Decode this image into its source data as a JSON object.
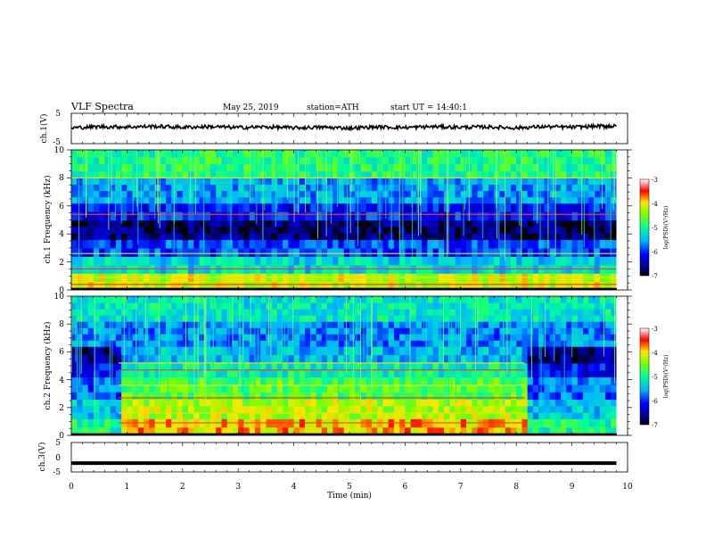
{
  "header": {
    "title": "VLF Spectra",
    "date": "May 25, 2019",
    "station": "station=ATH",
    "start": "start UT = 14:40:1"
  },
  "chart_data": [
    {
      "type": "line",
      "name": "ch1-waveform",
      "ylabel": "ch.1(V)",
      "ylim": [
        -5,
        5
      ],
      "yticks": [
        "5",
        "-5"
      ],
      "xlim": [
        0,
        10
      ],
      "x": [
        0,
        0.5,
        1,
        1.5,
        2,
        2.5,
        3,
        3.5,
        4,
        4.5,
        5,
        5.5,
        6,
        6.5,
        7,
        7.5,
        8,
        8.5,
        9,
        9.5,
        9.8
      ],
      "y": [
        0.2,
        0.6,
        0.5,
        0.7,
        0.4,
        0.6,
        0.3,
        0.5,
        0.2,
        0.4,
        0.1,
        0.5,
        0.3,
        0.6,
        0.4,
        0.5,
        0.2,
        0.6,
        0.4,
        0.8,
        0.7
      ]
    },
    {
      "type": "heatmap",
      "name": "ch1-spectrogram",
      "ylabel": "ch.1 Frequency (kHz)",
      "ylim": [
        0,
        10
      ],
      "yticks": [
        "0",
        "2",
        "4",
        "6",
        "8",
        "10"
      ],
      "xlim": [
        0,
        10
      ],
      "data_end_min": 9.8,
      "colorbar": {
        "label": "log(PSD)(V²/Hz)",
        "ticks": [
          "-3",
          "-4",
          "-5",
          "-6",
          "-7"
        ],
        "range": [
          -7,
          -3
        ]
      },
      "bands_kHz": [
        {
          "from": 0,
          "to": 1.2,
          "level": -4.2
        },
        {
          "from": 1.2,
          "to": 2.4,
          "level": -5.3
        },
        {
          "from": 2.4,
          "to": 3.6,
          "level": -5.9
        },
        {
          "from": 3.6,
          "to": 5.0,
          "level": -6.7
        },
        {
          "from": 5.0,
          "to": 6.2,
          "level": -6.1
        },
        {
          "from": 6.2,
          "to": 8.0,
          "level": -5.6
        },
        {
          "from": 8.0,
          "to": 10.0,
          "level": -4.9
        }
      ],
      "tone_lines_kHz": [
        0.4,
        0.9,
        1.5,
        2.6,
        5.4,
        8.0
      ]
    },
    {
      "type": "heatmap",
      "name": "ch2-spectrogram",
      "ylabel": "ch.2 Frequency (kHz)",
      "ylim": [
        0,
        10
      ],
      "yticks": [
        "0",
        "2",
        "4",
        "6",
        "8",
        "10"
      ],
      "xlim": [
        0,
        10
      ],
      "data_end_min": 9.8,
      "colorbar": {
        "label": "log(PSD)(V²/Hz)",
        "ticks": [
          "-3",
          "-4",
          "-5",
          "-6",
          "-7"
        ],
        "range": [
          -7,
          -3
        ]
      },
      "active_interval_min": [
        0.85,
        8.15
      ],
      "bands_kHz": [
        {
          "from": 0,
          "to": 1.2,
          "level": -4.6
        },
        {
          "from": 1.2,
          "to": 2.6,
          "level": -5.0
        },
        {
          "from": 2.6,
          "to": 4.2,
          "level": -5.4
        },
        {
          "from": 4.2,
          "to": 5.2,
          "level": -5.8
        },
        {
          "from": 5.2,
          "to": 6.4,
          "level": -6.2
        },
        {
          "from": 6.4,
          "to": 8.2,
          "level": -5.7
        },
        {
          "from": 8.2,
          "to": 10.0,
          "level": -5.2
        }
      ],
      "tone_lines_kHz": [
        0.9,
        1.6,
        2.7,
        3.6,
        4.7,
        5.2
      ]
    },
    {
      "type": "line",
      "name": "ch3-waveform",
      "ylabel": "ch.3(V)",
      "ylim": [
        -5,
        5
      ],
      "yticks": [
        "5",
        "0",
        "-5"
      ],
      "xlim": [
        0,
        10
      ],
      "x": [
        0,
        9.8
      ],
      "y": [
        -2,
        -2
      ]
    }
  ],
  "xaxis": {
    "label": "Time (min)",
    "ticks": [
      "0",
      "1",
      "2",
      "3",
      "4",
      "5",
      "6",
      "7",
      "8",
      "9",
      "10"
    ]
  }
}
